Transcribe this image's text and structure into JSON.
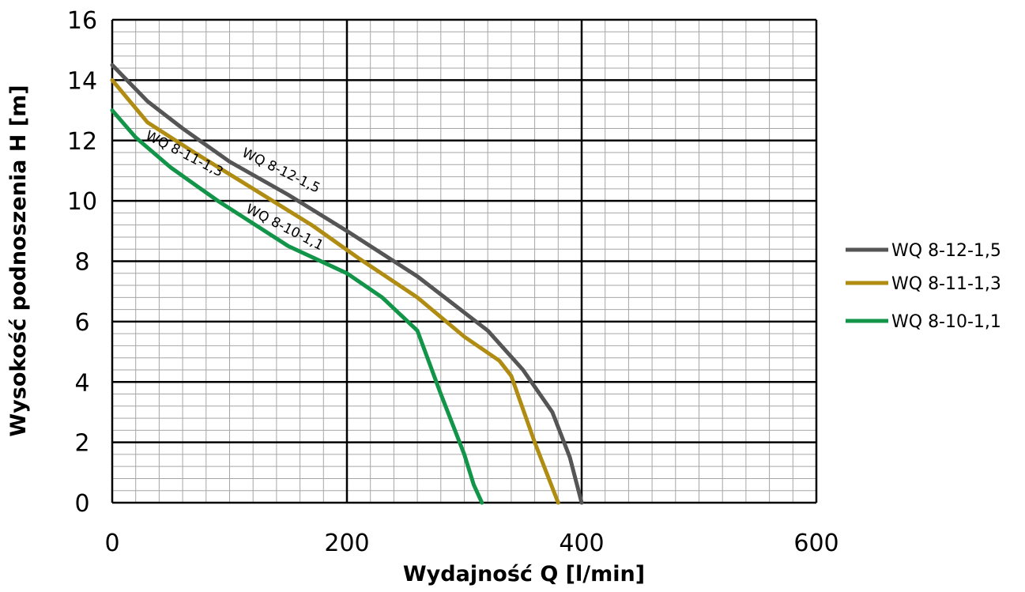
{
  "chart_data": {
    "type": "line",
    "xlabel": "Wydajność Q [l/min]",
    "ylabel": "Wysokość podnoszenia H [m]",
    "xlim": [
      0,
      600
    ],
    "ylim": [
      0,
      16
    ],
    "xticks": [
      "0",
      "200",
      "400",
      "600"
    ],
    "yticks": [
      "0",
      "2",
      "4",
      "6",
      "8",
      "10",
      "12",
      "14",
      "16"
    ],
    "grid": true,
    "legend_position": "right",
    "series": [
      {
        "name": "WQ 8-12-1,5",
        "color": "#555555",
        "curve_label": "WQ 8-12-1,5",
        "x": [
          0,
          30,
          60,
          100,
          150,
          200,
          260,
          320,
          350,
          375,
          390,
          400
        ],
        "y": [
          14.5,
          13.3,
          12.4,
          11.3,
          10.2,
          9.0,
          7.5,
          5.7,
          4.4,
          3.0,
          1.5,
          0
        ]
      },
      {
        "name": "WQ 8-11-1,3",
        "color": "#B08D12",
        "curve_label": "WQ 8-11-1,3",
        "x": [
          0,
          30,
          70,
          120,
          170,
          210,
          260,
          300,
          330,
          340,
          360,
          380
        ],
        "y": [
          14.0,
          12.6,
          11.6,
          10.4,
          9.2,
          8.1,
          6.8,
          5.5,
          4.7,
          4.2,
          2.0,
          0
        ]
      },
      {
        "name": "WQ 8-10-1,1",
        "color": "#129449",
        "curve_label": "WQ 8-10-1,1",
        "x": [
          0,
          20,
          50,
          90,
          110,
          150,
          200,
          230,
          260,
          280,
          300,
          308,
          315
        ],
        "y": [
          13.0,
          12.1,
          11.1,
          10.0,
          9.5,
          8.5,
          7.6,
          6.8,
          5.7,
          3.6,
          1.6,
          0.6,
          0
        ]
      }
    ]
  }
}
